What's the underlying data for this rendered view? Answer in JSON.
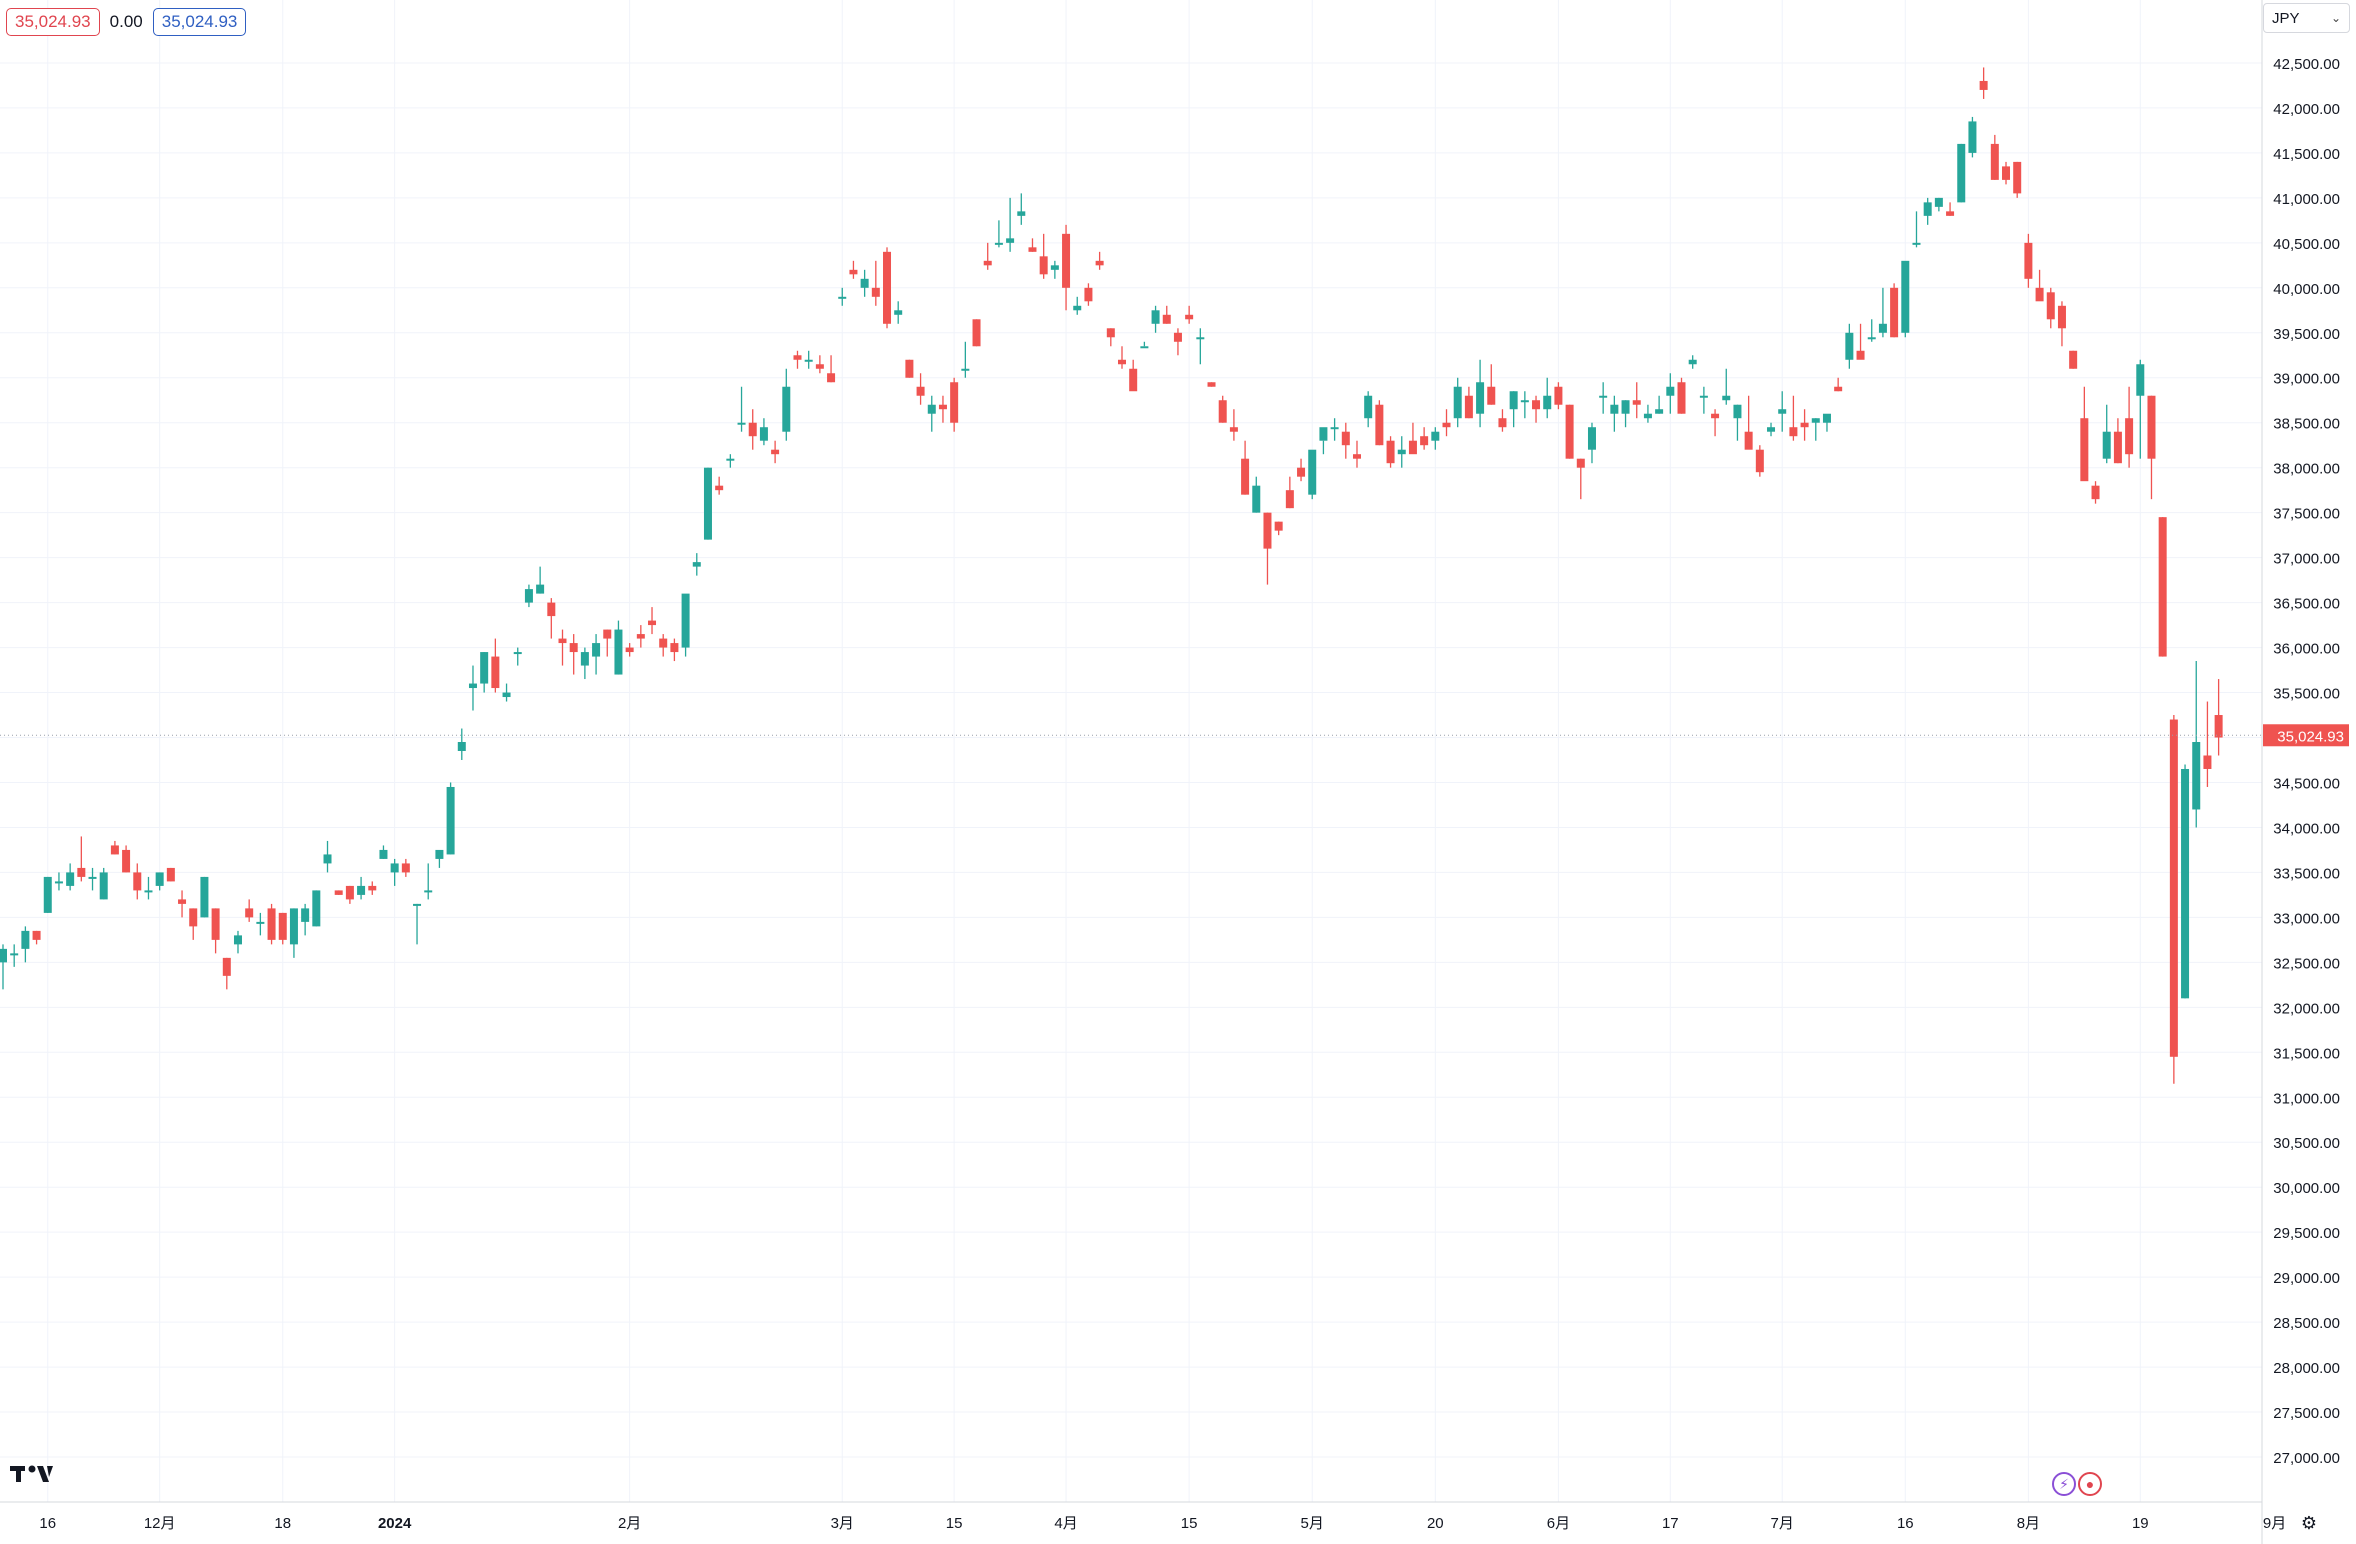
{
  "header": {
    "price_badge_left": "35,024.93",
    "change": "0.00",
    "price_badge_right": "35,024.93"
  },
  "currency_selector": {
    "label": "JPY",
    "icon": "chevron-down-icon"
  },
  "colors": {
    "up": "#26a69a",
    "down": "#ef5350",
    "grid": "#f0f3fa",
    "axis_text": "#131722",
    "last_price_bg": "#ef5350"
  },
  "icons": [
    "tradingview-logo-icon",
    "lightning-icon",
    "record-icon",
    "settings-icon"
  ],
  "chart_data": {
    "type": "candlestick",
    "y_axis": {
      "ticks": [
        27000,
        27500,
        28000,
        28500,
        29000,
        29500,
        30000,
        30500,
        31000,
        31500,
        32000,
        32500,
        33000,
        33500,
        34000,
        34500,
        35000,
        35500,
        36000,
        36500,
        37000,
        37500,
        38000,
        38500,
        39000,
        39500,
        40000,
        40500,
        41000,
        41500,
        42000,
        42500
      ],
      "tick_labels": [
        "27,000.00",
        "27,500.00",
        "28,000.00",
        "28,500.00",
        "29,000.00",
        "29,500.00",
        "30,000.00",
        "30,500.00",
        "31,000.00",
        "31,500.00",
        "32,000.00",
        "32,500.00",
        "33,000.00",
        "33,500.00",
        "34,000.00",
        "34,500.00",
        "35,000.00",
        "35,500.00",
        "36,000.00",
        "36,500.00",
        "37,000.00",
        "37,500.00",
        "38,000.00",
        "38,500.00",
        "39,000.00",
        "39,500.00",
        "40,000.00",
        "40,500.00",
        "41,000.00",
        "41,500.00",
        "42,000.00",
        "42,500.00"
      ],
      "range": [
        26500,
        43200
      ],
      "last_price": 35024.93,
      "last_price_label": "35,024.93"
    },
    "x_axis": {
      "labels": [
        "16",
        "12月",
        "18",
        "2024",
        "2月",
        "3月",
        "15",
        "4月",
        "15",
        "5月",
        "20",
        "6月",
        "17",
        "7月",
        "16",
        "8月",
        "19",
        "9月"
      ],
      "label_positions": [
        4,
        14,
        25,
        35,
        56,
        75,
        85,
        95,
        106,
        117,
        128,
        139,
        149,
        159,
        170,
        181,
        191,
        203
      ],
      "bold_labels": [
        "2024"
      ]
    },
    "ohlc": [
      [
        32500,
        32700,
        32200,
        32650
      ],
      [
        32600,
        32700,
        32450,
        32600
      ],
      [
        32650,
        32900,
        32500,
        32850
      ],
      [
        32850,
        32850,
        32700,
        32750
      ],
      [
        33050,
        33450,
        33050,
        33450
      ],
      [
        33400,
        33500,
        33300,
        33400
      ],
      [
        33350,
        33600,
        33300,
        33500
      ],
      [
        33550,
        33900,
        33400,
        33450
      ],
      [
        33450,
        33550,
        33300,
        33450
      ],
      [
        33200,
        33550,
        33200,
        33500
      ],
      [
        33800,
        33850,
        33700,
        33700
      ],
      [
        33750,
        33800,
        33500,
        33500
      ],
      [
        33500,
        33600,
        33200,
        33300
      ],
      [
        33300,
        33450,
        33200,
        33300
      ],
      [
        33350,
        33500,
        33300,
        33500
      ],
      [
        33550,
        33550,
        33400,
        33400
      ],
      [
        33200,
        33300,
        33000,
        33150
      ],
      [
        33100,
        33100,
        32750,
        32900
      ],
      [
        33000,
        33450,
        33000,
        33450
      ],
      [
        33100,
        33100,
        32600,
        32750
      ],
      [
        32550,
        32550,
        32200,
        32350
      ],
      [
        32700,
        32850,
        32600,
        32800
      ],
      [
        33100,
        33200,
        32950,
        33000
      ],
      [
        32950,
        33050,
        32800,
        32950
      ],
      [
        33100,
        33150,
        32700,
        32750
      ],
      [
        33050,
        33050,
        32700,
        32750
      ],
      [
        32700,
        33100,
        32550,
        33100
      ],
      [
        32950,
        33150,
        32800,
        33100
      ],
      [
        32900,
        33300,
        32900,
        33300
      ],
      [
        33600,
        33850,
        33500,
        33700
      ],
      [
        33300,
        33300,
        33250,
        33250
      ],
      [
        33350,
        33350,
        33150,
        33200
      ],
      [
        33250,
        33450,
        33200,
        33350
      ],
      [
        33350,
        33400,
        33250,
        33300
      ],
      [
        33650,
        33800,
        33650,
        33750
      ],
      [
        33500,
        33650,
        33350,
        33600
      ],
      [
        33600,
        33650,
        33450,
        33500
      ],
      [
        33150,
        33150,
        32700,
        33150
      ],
      [
        33300,
        33600,
        33200,
        33300
      ],
      [
        33650,
        33700,
        33550,
        33750
      ],
      [
        33700,
        34500,
        33700,
        34450
      ],
      [
        34850,
        35100,
        34750,
        34950
      ],
      [
        35550,
        35800,
        35300,
        35600
      ],
      [
        35600,
        35950,
        35500,
        35950
      ],
      [
        35900,
        36100,
        35500,
        35550
      ],
      [
        35450,
        35600,
        35400,
        35500
      ],
      [
        35950,
        36000,
        35800,
        35950
      ],
      [
        36500,
        36700,
        36450,
        36650
      ],
      [
        36600,
        36900,
        36600,
        36700
      ],
      [
        36500,
        36550,
        36100,
        36350
      ],
      [
        36100,
        36200,
        35800,
        36050
      ],
      [
        36050,
        36150,
        35700,
        35950
      ],
      [
        35800,
        36000,
        35650,
        35950
      ],
      [
        35900,
        36150,
        35700,
        36050
      ],
      [
        36200,
        36200,
        35900,
        36100
      ],
      [
        35700,
        36300,
        35700,
        36200
      ],
      [
        36000,
        36050,
        35900,
        35950
      ],
      [
        36150,
        36250,
        36000,
        36100
      ],
      [
        36300,
        36450,
        36150,
        36250
      ],
      [
        36100,
        36150,
        35900,
        36000
      ],
      [
        36050,
        36100,
        35850,
        35950
      ],
      [
        36000,
        36500,
        35900,
        36600
      ],
      [
        36900,
        37050,
        36800,
        36950
      ],
      [
        37200,
        38000,
        37200,
        38000
      ],
      [
        37800,
        37900,
        37700,
        37750
      ],
      [
        38100,
        38150,
        38000,
        38100
      ],
      [
        38500,
        38900,
        38400,
        38500
      ],
      [
        38500,
        38650,
        38200,
        38350
      ],
      [
        38300,
        38550,
        38250,
        38450
      ],
      [
        38200,
        38300,
        38050,
        38150
      ],
      [
        38400,
        39100,
        38300,
        38900
      ],
      [
        39250,
        39300,
        39100,
        39200
      ],
      [
        39200,
        39300,
        39100,
        39200
      ],
      [
        39150,
        39250,
        39050,
        39100
      ],
      [
        39050,
        39250,
        38950,
        38950
      ],
      [
        39900,
        40000,
        39800,
        39900
      ],
      [
        40200,
        40300,
        40100,
        40150
      ],
      [
        40000,
        40200,
        39900,
        40100
      ],
      [
        40000,
        40300,
        39800,
        39900
      ],
      [
        40400,
        40450,
        39550,
        39600
      ],
      [
        39700,
        39850,
        39600,
        39750
      ],
      [
        39200,
        39200,
        39000,
        39000
      ],
      [
        38900,
        39050,
        38700,
        38800
      ],
      [
        38600,
        38800,
        38400,
        38700
      ],
      [
        38700,
        38800,
        38500,
        38650
      ],
      [
        38950,
        39000,
        38400,
        38500
      ],
      [
        39100,
        39400,
        39000,
        39100
      ],
      [
        39650,
        39650,
        39350,
        39350
      ],
      [
        40300,
        40500,
        40200,
        40250
      ],
      [
        40500,
        40750,
        40450,
        40500
      ],
      [
        40500,
        41000,
        40400,
        40550
      ],
      [
        40800,
        41050,
        40700,
        40850
      ],
      [
        40450,
        40550,
        40400,
        40400
      ],
      [
        40350,
        40600,
        40100,
        40150
      ],
      [
        40200,
        40300,
        40100,
        40250
      ],
      [
        40600,
        40700,
        39750,
        40000
      ],
      [
        39750,
        39900,
        39700,
        39800
      ],
      [
        40000,
        40050,
        39800,
        39850
      ],
      [
        40300,
        40400,
        40200,
        40250
      ],
      [
        39550,
        39550,
        39350,
        39450
      ],
      [
        39200,
        39350,
        39100,
        39150
      ],
      [
        39100,
        39200,
        39000,
        38850
      ],
      [
        39350,
        39400,
        39350,
        39350
      ],
      [
        39600,
        39800,
        39500,
        39750
      ],
      [
        39700,
        39800,
        39600,
        39600
      ],
      [
        39500,
        39550,
        39250,
        39400
      ],
      [
        39700,
        39800,
        39600,
        39650
      ],
      [
        39450,
        39550,
        39150,
        39450
      ],
      [
        38950,
        38950,
        38900,
        38900
      ],
      [
        38750,
        38800,
        38500,
        38500
      ],
      [
        38450,
        38650,
        38300,
        38400
      ],
      [
        38100,
        38300,
        37700,
        37700
      ],
      [
        37500,
        37900,
        37500,
        37800
      ],
      [
        37500,
        37500,
        36700,
        37100
      ],
      [
        37400,
        37400,
        37250,
        37300
      ],
      [
        37750,
        37900,
        37550,
        37550
      ],
      [
        38000,
        38100,
        37850,
        37900
      ],
      [
        37700,
        38100,
        37650,
        38200
      ],
      [
        38300,
        38300,
        38150,
        38450
      ],
      [
        38450,
        38550,
        38300,
        38450
      ],
      [
        38400,
        38500,
        38100,
        38250
      ],
      [
        38150,
        38300,
        38000,
        38100
      ],
      [
        38550,
        38850,
        38450,
        38800
      ],
      [
        38700,
        38750,
        38250,
        38250
      ],
      [
        38300,
        38350,
        38000,
        38050
      ],
      [
        38150,
        38350,
        38000,
        38200
      ],
      [
        38300,
        38500,
        38200,
        38150
      ],
      [
        38350,
        38450,
        38200,
        38250
      ],
      [
        38300,
        38450,
        38200,
        38400
      ],
      [
        38500,
        38650,
        38350,
        38450
      ],
      [
        38550,
        39000,
        38450,
        38900
      ],
      [
        38800,
        38900,
        38550,
        38550
      ],
      [
        38600,
        39200,
        38450,
        38950
      ],
      [
        38900,
        39150,
        38700,
        38700
      ],
      [
        38550,
        38650,
        38400,
        38450
      ],
      [
        38650,
        38850,
        38450,
        38850
      ],
      [
        38750,
        38850,
        38550,
        38750
      ],
      [
        38750,
        38800,
        38500,
        38650
      ],
      [
        38650,
        39000,
        38550,
        38800
      ],
      [
        38900,
        38950,
        38650,
        38700
      ],
      [
        38700,
        38700,
        38100,
        38100
      ],
      [
        38100,
        38100,
        37650,
        38000
      ],
      [
        38200,
        38500,
        38050,
        38450
      ],
      [
        38800,
        38950,
        38600,
        38800
      ],
      [
        38600,
        38800,
        38400,
        38700
      ],
      [
        38600,
        38750,
        38450,
        38750
      ],
      [
        38750,
        38950,
        38550,
        38700
      ],
      [
        38550,
        38700,
        38500,
        38600
      ],
      [
        38600,
        38800,
        38600,
        38650
      ],
      [
        38800,
        39050,
        38600,
        38900
      ],
      [
        38950,
        39000,
        38600,
        38600
      ],
      [
        39150,
        39250,
        39100,
        39200
      ],
      [
        38800,
        38900,
        38600,
        38800
      ],
      [
        38600,
        38650,
        38350,
        38550
      ],
      [
        38750,
        39100,
        38700,
        38800
      ],
      [
        38550,
        38700,
        38300,
        38700
      ],
      [
        38400,
        38800,
        38300,
        38200
      ],
      [
        38200,
        38250,
        37900,
        37950
      ],
      [
        38400,
        38500,
        38350,
        38450
      ],
      [
        38600,
        38850,
        38400,
        38650
      ],
      [
        38450,
        38800,
        38300,
        38350
      ],
      [
        38500,
        38650,
        38300,
        38450
      ],
      [
        38500,
        38550,
        38300,
        38550
      ],
      [
        38500,
        38550,
        38400,
        38600
      ],
      [
        38900,
        39000,
        38850,
        38850
      ],
      [
        39200,
        39600,
        39100,
        39500
      ],
      [
        39300,
        39600,
        39250,
        39200
      ],
      [
        39450,
        39650,
        39400,
        39450
      ],
      [
        39500,
        40000,
        39450,
        39600
      ],
      [
        40000,
        40050,
        39450,
        39450
      ],
      [
        39500,
        40200,
        39450,
        40300
      ],
      [
        40500,
        40850,
        40450,
        40500
      ],
      [
        40800,
        41000,
        40700,
        40950
      ],
      [
        40900,
        41000,
        40850,
        41000
      ],
      [
        40850,
        40950,
        40800,
        40800
      ],
      [
        40950,
        41600,
        40950,
        41600
      ],
      [
        41500,
        41900,
        41450,
        41850
      ],
      [
        42300,
        42450,
        42100,
        42200
      ],
      [
        41600,
        41700,
        41200,
        41200
      ],
      [
        41350,
        41400,
        41150,
        41200
      ],
      [
        41400,
        41400,
        41000,
        41050
      ],
      [
        40500,
        40600,
        40000,
        40100
      ],
      [
        40000,
        40200,
        39900,
        39850
      ],
      [
        39950,
        40000,
        39550,
        39650
      ],
      [
        39800,
        39850,
        39350,
        39550
      ],
      [
        39300,
        39300,
        39100,
        39100
      ],
      [
        38550,
        38900,
        37900,
        37850
      ],
      [
        37800,
        37850,
        37600,
        37650
      ],
      [
        38100,
        38700,
        38050,
        38400
      ],
      [
        38400,
        38550,
        38050,
        38050
      ],
      [
        38550,
        38900,
        38000,
        38150
      ],
      [
        38800,
        39200,
        38100,
        39150
      ],
      [
        38800,
        38800,
        37650,
        38100
      ],
      [
        37450,
        37450,
        35900,
        35900
      ],
      [
        35200,
        35250,
        31150,
        31450
      ],
      [
        32100,
        34700,
        32100,
        34650
      ],
      [
        34200,
        35850,
        34000,
        34950
      ],
      [
        34800,
        35400,
        34450,
        34650
      ],
      [
        35250,
        35650,
        34800,
        35000
      ]
    ]
  }
}
